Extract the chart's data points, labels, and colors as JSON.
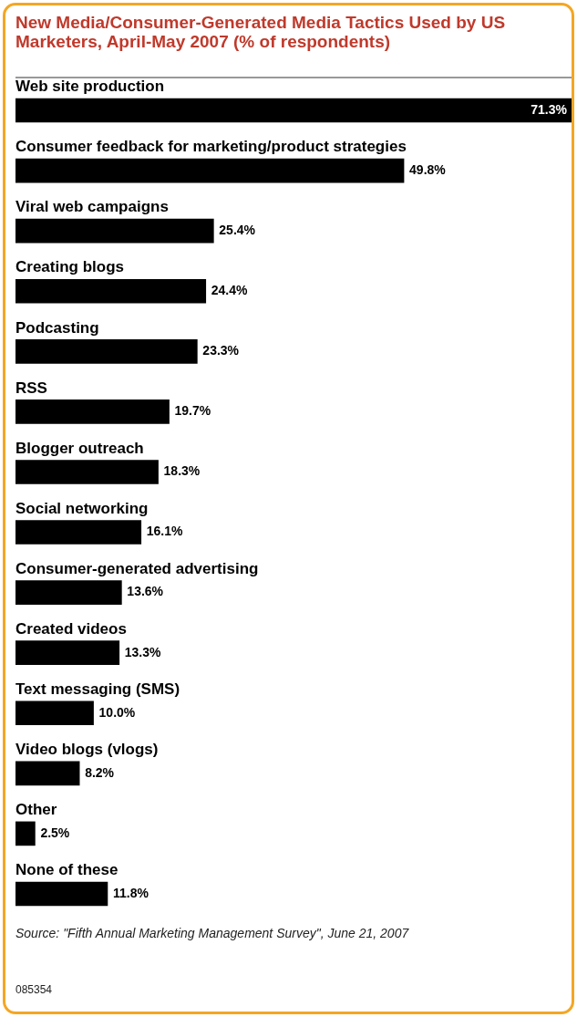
{
  "chart_data": {
    "type": "bar",
    "orientation": "horizontal",
    "title": "New Media/Consumer-Generated Media Tactics Used by US Marketers, April-May 2007 (% of respondents)",
    "categories": [
      "Web site production",
      "Consumer feedback for marketing/product strategies",
      "Viral web campaigns",
      "Creating blogs",
      "Podcasting",
      "RSS",
      "Blogger outreach",
      "Social networking",
      "Consumer-generated advertising",
      "Created videos",
      "Text messaging (SMS)",
      "Video blogs (vlogs)",
      "Other",
      "None of these"
    ],
    "values": [
      71.3,
      49.8,
      25.4,
      24.4,
      23.3,
      19.7,
      18.3,
      16.1,
      13.6,
      13.3,
      10.0,
      8.2,
      2.5,
      11.8
    ],
    "value_labels": [
      "71.3%",
      "49.8%",
      "25.4%",
      "24.4%",
      "23.3%",
      "19.7%",
      "18.3%",
      "16.1%",
      "13.6%",
      "13.3%",
      "10.0%",
      "8.2%",
      "2.5%",
      "11.8%"
    ],
    "color": "#000000",
    "annotations": [
      "Source: \"Fifth Annual Marketing Management Survey\", June 21, 2007",
      "085354"
    ]
  }
}
